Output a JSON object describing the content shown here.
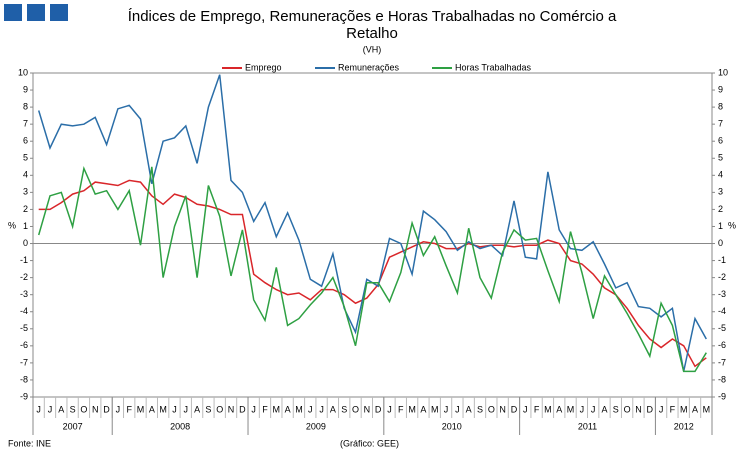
{
  "chart_data": {
    "type": "line",
    "title": [
      "Índices de Emprego, Remunerações e Horas Trabalhadas no Comércio a",
      "Retalho"
    ],
    "subtitle": "(VH)",
    "y_label": "%",
    "y2_label": "%",
    "x": [
      "2007-06",
      "2007-07",
      "2007-08",
      "2007-09",
      "2007-10",
      "2007-11",
      "2007-12",
      "2008-01",
      "2008-02",
      "2008-03",
      "2008-04",
      "2008-05",
      "2008-06",
      "2008-07",
      "2008-08",
      "2008-09",
      "2008-10",
      "2008-11",
      "2008-12",
      "2009-01",
      "2009-02",
      "2009-03",
      "2009-04",
      "2009-05",
      "2009-06",
      "2009-07",
      "2009-08",
      "2009-09",
      "2009-10",
      "2009-11",
      "2009-12",
      "2010-01",
      "2010-02",
      "2010-03",
      "2010-04",
      "2010-05",
      "2010-06",
      "2010-07",
      "2010-08",
      "2010-09",
      "2010-10",
      "2010-11",
      "2010-12",
      "2011-01",
      "2011-02",
      "2011-03",
      "2011-04",
      "2011-05",
      "2011-06",
      "2011-07",
      "2011-08",
      "2011-09",
      "2011-10",
      "2011-11",
      "2011-12",
      "2012-01",
      "2012-02",
      "2012-03",
      "2012-04",
      "2012-05"
    ],
    "month_labels": [
      "J",
      "J",
      "A",
      "S",
      "O",
      "N",
      "D",
      "J",
      "F",
      "M",
      "A",
      "M",
      "J",
      "J",
      "A",
      "S",
      "O",
      "N",
      "D",
      "J",
      "F",
      "M",
      "A",
      "M",
      "J",
      "J",
      "A",
      "S",
      "O",
      "N",
      "D",
      "J",
      "F",
      "M",
      "A",
      "M",
      "J",
      "J",
      "A",
      "S",
      "O",
      "N",
      "D",
      "J",
      "F",
      "M",
      "A",
      "M",
      "J",
      "J",
      "A",
      "S",
      "O",
      "N",
      "D",
      "J",
      "F",
      "M",
      "A",
      "M"
    ],
    "years": [
      "2007",
      "2008",
      "2009",
      "2010",
      "2011",
      "2012"
    ],
    "series": [
      {
        "name": "Emprego",
        "color": "#d9262a",
        "values": [
          2.0,
          2.0,
          2.4,
          2.9,
          3.1,
          3.6,
          3.5,
          3.4,
          3.7,
          3.6,
          2.8,
          2.3,
          2.9,
          2.7,
          2.3,
          2.2,
          2.0,
          1.7,
          1.7,
          -1.8,
          -2.3,
          -2.7,
          -3.0,
          -2.9,
          -3.3,
          -2.7,
          -2.7,
          -3.0,
          -3.5,
          -3.2,
          -2.4,
          -0.8,
          -0.5,
          -0.2,
          0.1,
          0.0,
          -0.3,
          -0.3,
          0.0,
          -0.2,
          -0.1,
          -0.1,
          -0.2,
          -0.1,
          -0.1,
          0.2,
          0.0,
          -1.0,
          -1.2,
          -1.8,
          -2.6,
          -3.0,
          -3.8,
          -4.8,
          -5.6,
          -6.1,
          -5.6,
          -6.0,
          -7.2,
          -6.7
        ]
      },
      {
        "name": "Remunerações",
        "color": "#2b6ea8",
        "values": [
          7.8,
          5.6,
          7.0,
          6.9,
          7.0,
          7.4,
          5.8,
          7.9,
          8.1,
          7.3,
          3.5,
          6.0,
          6.2,
          6.9,
          4.7,
          8.0,
          9.9,
          3.7,
          3.0,
          1.3,
          2.4,
          0.4,
          1.8,
          0.2,
          -2.1,
          -2.5,
          -0.6,
          -3.8,
          -5.2,
          -2.1,
          -2.5,
          0.3,
          0.0,
          -1.8,
          1.9,
          1.4,
          0.7,
          -0.4,
          0.1,
          -0.3,
          -0.1,
          -0.7,
          2.5,
          -0.8,
          -0.9,
          4.2,
          0.8,
          -0.3,
          -0.4,
          0.1,
          -1.2,
          -2.6,
          -2.3,
          -3.7,
          -3.8,
          -4.3,
          -3.8,
          -7.5,
          -4.4,
          -5.6
        ]
      },
      {
        "name": "Horas Trabalhadas",
        "color": "#2ea043",
        "values": [
          0.5,
          2.8,
          3.0,
          1.0,
          4.4,
          2.9,
          3.1,
          2.0,
          3.1,
          -0.1,
          4.5,
          -2.0,
          1.0,
          2.8,
          -2.0,
          3.4,
          1.6,
          -1.9,
          0.8,
          -3.3,
          -4.5,
          -1.4,
          -4.8,
          -4.4,
          -3.6,
          -2.9,
          -2.0,
          -3.7,
          -6.0,
          -2.3,
          -2.3,
          -3.4,
          -1.7,
          1.2,
          -0.7,
          0.4,
          -1.3,
          -2.9,
          0.9,
          -2.0,
          -3.2,
          -0.5,
          0.8,
          0.2,
          0.3,
          -1.6,
          -3.4,
          0.7,
          -1.7,
          -4.4,
          -1.9,
          -3.0,
          -4.1,
          -5.3,
          -6.6,
          -3.5,
          -4.8,
          -7.5,
          -7.5,
          -6.4
        ]
      }
    ],
    "ylim": [
      -9,
      10
    ],
    "yticks": [
      -9,
      -8,
      -7,
      -6,
      -5,
      -4,
      -3,
      -2,
      -1,
      0,
      1,
      2,
      3,
      4,
      5,
      6,
      7,
      8,
      9,
      10
    ],
    "y2lim": [
      -9,
      10
    ],
    "y2ticks": [
      -9,
      -8,
      -7,
      -6,
      -5,
      -4,
      -3,
      -2,
      -1,
      0,
      1,
      2,
      3,
      4,
      5,
      6,
      7,
      8,
      9,
      10
    ],
    "source": "Fonte: INE",
    "credit": "(Gráfico: GEE)"
  }
}
